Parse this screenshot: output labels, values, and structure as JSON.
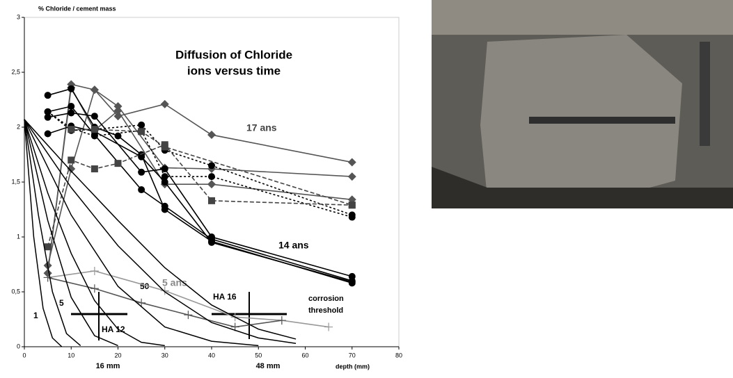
{
  "chart_data": {
    "type": "line",
    "y_label": "% Chloride / cement mass",
    "title_lines": [
      "Diffusion of Chloride",
      "ions versus time"
    ],
    "x_label": "depth (mm)",
    "annotations": [
      "17 ans",
      "14 ans",
      "5 ans",
      "50",
      "5",
      "1",
      "HA 12",
      "HA 16",
      "corrosion",
      "threshold",
      "16 mm",
      "48 mm"
    ],
    "xlim": [
      0,
      80
    ],
    "ylim": [
      0,
      3
    ],
    "xticks": [
      0,
      10,
      20,
      30,
      40,
      50,
      60,
      70,
      80
    ],
    "yticks": [
      0,
      {
        "value": 0.5,
        "label": "0,5"
      },
      1,
      {
        "value": 1.5,
        "label": "1,5"
      },
      2,
      {
        "value": 2.5,
        "label": "2,5"
      },
      3
    ],
    "series": [
      {
        "color": "#555555",
        "marker": "diamond",
        "dash": "solid",
        "x": [
          5,
          10,
          15,
          20,
          30,
          40,
          70
        ],
        "values": [
          0.67,
          2.39,
          2.34,
          2.19,
          1.63,
          1.62,
          1.55
        ]
      },
      {
        "color": "#555555",
        "marker": "diamond",
        "dash": "solid",
        "x": [
          5,
          10,
          15,
          20,
          30,
          40,
          70
        ],
        "values": [
          0.74,
          1.62,
          2.34,
          2.1,
          2.21,
          1.93,
          1.68
        ]
      },
      {
        "color": "#555555",
        "marker": "diamond",
        "dash": "solid",
        "x": [
          5,
          10,
          15,
          20,
          30,
          40,
          70
        ],
        "values": [
          0.67,
          2.36,
          1.97,
          2.15,
          1.48,
          1.48,
          1.34
        ]
      },
      {
        "color": "#000000",
        "marker": "circle",
        "dash": "solid",
        "x": [
          5,
          10,
          15,
          20,
          25,
          30,
          40,
          70
        ],
        "values": [
          2.29,
          2.35,
          2.0,
          1.92,
          1.75,
          1.25,
          0.96,
          0.58
        ]
      },
      {
        "color": "#000000",
        "marker": "circle",
        "dash": "solid",
        "x": [
          5,
          10,
          15,
          25,
          30,
          40,
          70
        ],
        "values": [
          2.14,
          2.19,
          1.93,
          1.43,
          1.28,
          0.98,
          0.6
        ]
      },
      {
        "color": "#000000",
        "marker": "circle",
        "dash": "solid",
        "x": [
          5,
          10,
          15,
          25,
          30,
          40,
          70
        ],
        "values": [
          2.09,
          2.13,
          2.1,
          1.59,
          1.62,
          1.0,
          0.64
        ]
      },
      {
        "color": "#000000",
        "marker": "circle",
        "dash": "solid",
        "x": [
          5,
          10,
          15,
          25,
          30,
          40,
          70
        ],
        "values": [
          1.94,
          2.01,
          1.96,
          1.73,
          1.5,
          0.95,
          0.59
        ]
      },
      {
        "color": "#000000",
        "marker": "circle",
        "dash": "dotted",
        "x": [
          5,
          10,
          15,
          25,
          30,
          40,
          70
        ],
        "values": [
          2.14,
          1.97,
          1.98,
          2.02,
          1.79,
          1.65,
          1.2
        ]
      },
      {
        "color": "#000000",
        "marker": "circle",
        "dash": "dotted",
        "x": [
          5,
          10,
          15,
          25,
          30,
          40,
          70
        ],
        "values": [
          2.14,
          1.99,
          1.92,
          1.97,
          1.55,
          1.55,
          1.18
        ]
      },
      {
        "color": "#444444",
        "marker": "square",
        "dash": "dashed",
        "x": [
          5,
          10,
          15,
          20,
          30,
          40,
          70
        ],
        "values": [
          0.91,
          1.7,
          1.62,
          1.67,
          1.84,
          1.33,
          1.29
        ]
      },
      {
        "color": "#444444",
        "marker": "square",
        "dash": "dashed",
        "x": [
          10,
          15,
          25,
          30,
          70
        ],
        "values": [
          1.98,
          1.98,
          1.96,
          1.82,
          1.29
        ]
      },
      {
        "color": "#999999",
        "marker": "plus",
        "dash": "solid",
        "x": [
          5,
          15,
          30,
          45,
          55,
          65
        ],
        "values": [
          0.63,
          0.69,
          0.51,
          0.27,
          0.24,
          0.18
        ]
      },
      {
        "color": "#555555",
        "marker": "plus",
        "dash": "solid",
        "x": [
          5,
          15,
          25,
          35,
          45,
          55
        ],
        "values": [
          0.63,
          0.53,
          0.4,
          0.29,
          0.18,
          0.24
        ]
      },
      {
        "color": "#000000",
        "marker": "none",
        "dash": "solid",
        "x": [
          0,
          2,
          4,
          6,
          8
        ],
        "values": [
          2.07,
          1.0,
          0.35,
          0.08,
          0
        ]
      },
      {
        "color": "#000000",
        "marker": "none",
        "dash": "solid",
        "x": [
          0,
          3,
          6,
          9,
          12
        ],
        "values": [
          2.07,
          1.2,
          0.5,
          0.12,
          0.01
        ]
      },
      {
        "color": "#000000",
        "marker": "none",
        "dash": "solid",
        "x": [
          0,
          5,
          10,
          15,
          20
        ],
        "values": [
          2.07,
          1.15,
          0.45,
          0.1,
          0.01
        ]
      },
      {
        "color": "#000000",
        "marker": "none",
        "dash": "solid",
        "x": [
          0,
          5,
          10,
          15,
          20,
          25,
          30
        ],
        "values": [
          2.07,
          1.4,
          0.85,
          0.42,
          0.16,
          0.04,
          0.01
        ]
      },
      {
        "color": "#000000",
        "marker": "none",
        "dash": "solid",
        "x": [
          0,
          10,
          20,
          30,
          40,
          50
        ],
        "values": [
          2.07,
          1.2,
          0.55,
          0.18,
          0.05,
          0.01
        ]
      },
      {
        "color": "#000000",
        "marker": "none",
        "dash": "solid",
        "x": [
          0,
          10,
          20,
          30,
          40,
          50,
          58
        ],
        "values": [
          2.07,
          1.45,
          0.92,
          0.5,
          0.22,
          0.08,
          0.03
        ]
      },
      {
        "color": "#000000",
        "marker": "none",
        "dash": "solid",
        "x": [
          0,
          10,
          20,
          30,
          40,
          50,
          58
        ],
        "values": [
          2.07,
          1.6,
          1.15,
          0.72,
          0.38,
          0.16,
          0.07
        ]
      }
    ]
  }
}
